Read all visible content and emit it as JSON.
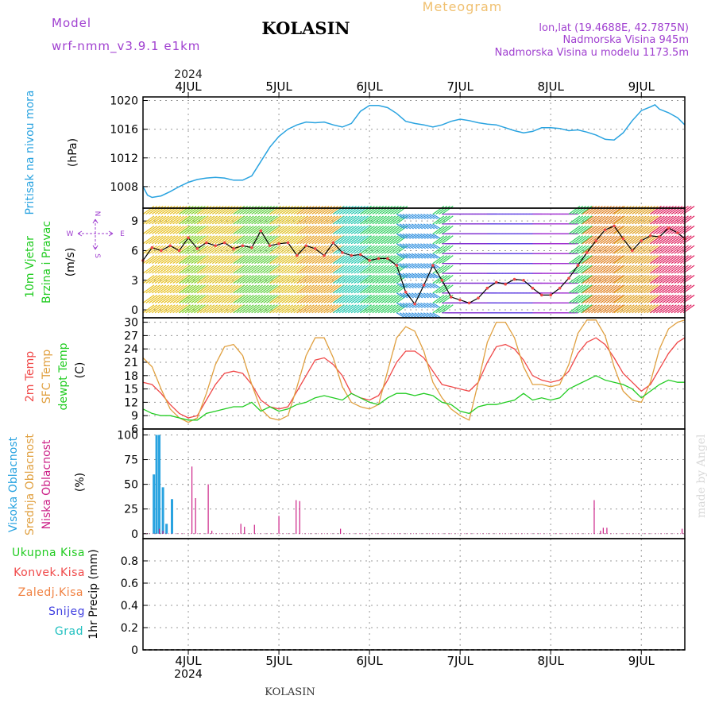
{
  "header": {
    "model_label": "Model",
    "model_name": "wrf-nmm_v3.9.1 e1km",
    "station": "KOLASIN",
    "meteogram": "Meteogram",
    "lonlat": "lon,lat (19.4688E, 42.7875N)",
    "elevation": "Nadmorska Visina 945m",
    "model_elevation": "Nadmorska Visina u modelu 1173.5m",
    "footer_station": "KOLASIN",
    "watermark": "made by Angel",
    "year_top": "2024",
    "year_bottom": "2024"
  },
  "colors": {
    "pressure": "#29a3e0",
    "temp2m": "#f04848",
    "sfc": "#e0a040",
    "dewpt": "#22cc22",
    "high_cloud": "#29a3e0",
    "mid_cloud": "#e0a040",
    "low_cloud": "#cc2288",
    "label_purple": "#a040d0",
    "meteogram": "#f0c070"
  },
  "chart_data": [
    {
      "type": "line",
      "title": "Pritisak na nivou mora",
      "ylabel": "(hPa)",
      "ylim": [
        1005,
        1020.5
      ],
      "yticks": [
        1008,
        1012,
        1016,
        1020
      ],
      "x_day_labels": [
        "4JUL",
        "5JUL",
        "6JUL",
        "7JUL",
        "8JUL",
        "9JUL"
      ],
      "grid": true,
      "series": [
        {
          "name": "Pritisak na nivou mora",
          "x": [
            3.5,
            3.55,
            3.6,
            3.7,
            3.8,
            3.9,
            4.0,
            4.1,
            4.2,
            4.3,
            4.4,
            4.5,
            4.6,
            4.7,
            4.8,
            4.9,
            5.0,
            5.1,
            5.2,
            5.3,
            5.4,
            5.5,
            5.6,
            5.7,
            5.8,
            5.9,
            6.0,
            6.1,
            6.2,
            6.3,
            6.4,
            6.5,
            6.6,
            6.7,
            6.8,
            6.9,
            7.0,
            7.1,
            7.2,
            7.3,
            7.4,
            7.5,
            7.6,
            7.7,
            7.8,
            7.9,
            8.0,
            8.1,
            8.2,
            8.3,
            8.4,
            8.5,
            8.6,
            8.7,
            8.8,
            8.9,
            9.0,
            9.1,
            9.15,
            9.2,
            9.3,
            9.4,
            9.48
          ],
          "values": [
            1008,
            1006.8,
            1006.5,
            1006.7,
            1007.3,
            1008,
            1008.6,
            1009,
            1009.2,
            1009.3,
            1009.2,
            1008.9,
            1008.9,
            1009.5,
            1011.5,
            1013.5,
            1015,
            1016,
            1016.6,
            1017,
            1016.9,
            1017,
            1016.6,
            1016.3,
            1016.8,
            1018.5,
            1019.3,
            1019.3,
            1019,
            1018.2,
            1017.1,
            1016.8,
            1016.6,
            1016.3,
            1016.6,
            1017.1,
            1017.4,
            1017.2,
            1016.9,
            1016.7,
            1016.6,
            1016.2,
            1015.8,
            1015.5,
            1015.7,
            1016.2,
            1016.2,
            1016.1,
            1015.8,
            1015.9,
            1015.6,
            1015.2,
            1014.6,
            1014.5,
            1015.5,
            1017.2,
            1018.6,
            1019.1,
            1019.4,
            1018.8,
            1018.3,
            1017.6,
            1016.6
          ]
        }
      ]
    },
    {
      "type": "line",
      "title": "10m Vjetar Brzina i Pravac",
      "ylabel": "(m/s)",
      "ylim": [
        -0.8,
        10.3
      ],
      "yticks": [
        0,
        3,
        6,
        9
      ],
      "compass": {
        "n": "N",
        "e": "E",
        "s": "S",
        "w": "W"
      },
      "grid": true,
      "series": [
        {
          "name": "speed",
          "x": [
            3.5,
            3.6,
            3.7,
            3.8,
            3.9,
            4.0,
            4.1,
            4.2,
            4.3,
            4.4,
            4.5,
            4.6,
            4.7,
            4.8,
            4.9,
            5.0,
            5.1,
            5.2,
            5.3,
            5.4,
            5.5,
            5.6,
            5.7,
            5.8,
            5.9,
            6.0,
            6.1,
            6.2,
            6.3,
            6.4,
            6.5,
            6.6,
            6.7,
            6.8,
            6.9,
            7.0,
            7.1,
            7.2,
            7.3,
            7.4,
            7.5,
            7.6,
            7.7,
            7.8,
            7.9,
            8.0,
            8.1,
            8.2,
            8.3,
            8.4,
            8.5,
            8.6,
            8.7,
            8.8,
            8.9,
            9.0,
            9.1,
            9.2,
            9.3,
            9.4,
            9.48
          ],
          "values": [
            5,
            6.3,
            6,
            6.5,
            6,
            7.3,
            6.2,
            6.8,
            6.5,
            6.8,
            6.2,
            6.5,
            6.3,
            8,
            6.5,
            6.7,
            6.8,
            5.5,
            6.5,
            6.2,
            5.5,
            6.8,
            5.8,
            5.5,
            5.6,
            5,
            5.2,
            5.2,
            4.5,
            1.8,
            0.6,
            2.5,
            4.5,
            3,
            1.3,
            1,
            0.7,
            1.2,
            2.2,
            2.8,
            2.6,
            3.1,
            3,
            2.2,
            1.5,
            1.5,
            2.2,
            3.2,
            4.5,
            5.8,
            7,
            8.1,
            8.5,
            7.2,
            6,
            7,
            7.5,
            7.4,
            8.3,
            7.8,
            7.2
          ]
        }
      ]
    },
    {
      "type": "line",
      "title": "2m Temp / SFC Temp / dewpt Temp",
      "ylabel": "(C)",
      "ylim": [
        6,
        31
      ],
      "yticks": [
        6,
        9,
        12,
        15,
        18,
        21,
        24,
        27,
        30
      ],
      "grid": true,
      "series": [
        {
          "name": "2m Temp",
          "x": [
            3.5,
            3.6,
            3.7,
            3.8,
            3.9,
            4.0,
            4.1,
            4.2,
            4.3,
            4.4,
            4.5,
            4.6,
            4.7,
            4.8,
            4.9,
            5.0,
            5.1,
            5.2,
            5.3,
            5.4,
            5.5,
            5.6,
            5.7,
            5.8,
            5.9,
            6.0,
            6.1,
            6.2,
            6.3,
            6.4,
            6.5,
            6.6,
            6.7,
            6.8,
            6.9,
            7.0,
            7.1,
            7.2,
            7.3,
            7.4,
            7.5,
            7.6,
            7.7,
            7.8,
            7.9,
            8.0,
            8.1,
            8.2,
            8.3,
            8.4,
            8.5,
            8.6,
            8.7,
            8.8,
            8.9,
            9.0,
            9.1,
            9.2,
            9.3,
            9.4,
            9.48
          ],
          "values": [
            16.5,
            16,
            14,
            11.5,
            9.5,
            8.5,
            9,
            12.5,
            16,
            18.5,
            19,
            18.5,
            16,
            12.5,
            11,
            10.5,
            11,
            14.5,
            18,
            21.5,
            22,
            20.5,
            18,
            14,
            13,
            12.5,
            13.5,
            17,
            21,
            23.5,
            23.5,
            22,
            19,
            16,
            15.5,
            15,
            14.5,
            16.5,
            21,
            24.5,
            25,
            24,
            21.5,
            18,
            17,
            16.5,
            17,
            19,
            23,
            25.5,
            26.5,
            25,
            22,
            18.5,
            16.5,
            14.5,
            16,
            19.5,
            23,
            25.5,
            26.5
          ]
        },
        {
          "name": "SFC Temp",
          "x": [
            3.5,
            3.6,
            3.7,
            3.8,
            3.9,
            4.0,
            4.1,
            4.2,
            4.3,
            4.4,
            4.5,
            4.6,
            4.7,
            4.8,
            4.9,
            5.0,
            5.1,
            5.2,
            5.3,
            5.4,
            5.5,
            5.6,
            5.7,
            5.8,
            5.9,
            6.0,
            6.1,
            6.2,
            6.3,
            6.4,
            6.5,
            6.6,
            6.7,
            6.8,
            6.9,
            7.0,
            7.1,
            7.2,
            7.3,
            7.4,
            7.5,
            7.6,
            7.7,
            7.8,
            7.9,
            8.0,
            8.1,
            8.2,
            8.3,
            8.4,
            8.5,
            8.6,
            8.7,
            8.8,
            8.9,
            9.0,
            9.1,
            9.2,
            9.3,
            9.4,
            9.48
          ],
          "values": [
            22,
            20,
            15,
            10.5,
            8.5,
            7.5,
            8.5,
            14,
            20.5,
            24.5,
            25,
            22.5,
            16,
            10.5,
            8.5,
            8,
            9,
            15.5,
            22.5,
            26.5,
            26.5,
            22,
            15.5,
            12,
            11,
            10.5,
            11.5,
            19,
            26.5,
            29,
            28,
            23.5,
            16.5,
            13,
            10.5,
            9,
            8,
            16.5,
            25.5,
            30,
            30,
            26.5,
            20,
            16,
            16,
            15.5,
            16,
            20.5,
            27.5,
            30.5,
            30.5,
            27,
            20,
            14.5,
            12.5,
            12,
            16.5,
            24,
            28.5,
            30,
            30.5
          ]
        },
        {
          "name": "dewpt Temp",
          "x": [
            3.5,
            3.6,
            3.7,
            3.8,
            3.9,
            4.0,
            4.1,
            4.2,
            4.3,
            4.4,
            4.5,
            4.6,
            4.7,
            4.8,
            4.9,
            5.0,
            5.1,
            5.2,
            5.3,
            5.4,
            5.5,
            5.6,
            5.7,
            5.8,
            5.9,
            6.0,
            6.1,
            6.2,
            6.3,
            6.4,
            6.5,
            6.6,
            6.7,
            6.8,
            6.9,
            7.0,
            7.1,
            7.2,
            7.3,
            7.4,
            7.5,
            7.6,
            7.7,
            7.8,
            7.9,
            8.0,
            8.1,
            8.2,
            8.3,
            8.4,
            8.5,
            8.6,
            8.7,
            8.8,
            8.9,
            9.0,
            9.1,
            9.2,
            9.3,
            9.4,
            9.48
          ],
          "values": [
            10.5,
            9.5,
            9,
            9,
            8.5,
            8,
            8,
            9.5,
            10,
            10.5,
            11,
            11,
            12,
            10,
            11,
            10,
            10.5,
            11.5,
            12,
            13,
            13.5,
            13,
            12.5,
            14,
            13,
            12,
            11.5,
            13,
            14,
            14,
            13.5,
            14,
            13.5,
            12,
            11.5,
            10,
            9.5,
            11,
            11.5,
            11.5,
            12,
            12.5,
            14,
            12.5,
            13,
            12.5,
            13,
            15,
            16,
            17,
            18,
            17,
            16.5,
            16,
            15,
            13,
            14.5,
            16,
            17,
            16.5,
            16.5
          ]
        }
      ]
    },
    {
      "type": "bar",
      "title": "Visoka Oblacnost / Srednja Oblacnost / Niska Oblacnost",
      "ylabel": "(%)",
      "ylim": [
        -5,
        106
      ],
      "yticks": [
        0,
        25,
        50,
        75,
        100
      ],
      "grid": true,
      "series": [
        {
          "name": "Visoka Oblacnost",
          "x": [
            3.62,
            3.65,
            3.68,
            3.72,
            3.76,
            3.82
          ],
          "values": [
            60,
            100,
            100,
            47,
            10,
            35
          ]
        },
        {
          "name": "Niska Oblacnost",
          "x": [
            3.68,
            3.72,
            4.04,
            4.08,
            4.22,
            4.26,
            4.58,
            4.62,
            4.73,
            5.0,
            5.19,
            5.23,
            5.68,
            8.48,
            8.55,
            8.58,
            8.62,
            9.45
          ],
          "values": [
            5,
            3,
            68,
            36,
            50,
            3,
            10,
            7,
            9,
            18,
            34,
            33,
            5,
            34,
            3,
            6,
            6,
            5
          ]
        }
      ]
    },
    {
      "type": "line",
      "title": "1hr Precip",
      "ylabel": "1hr Precip (mm)",
      "ylim": [
        0,
        1.0
      ],
      "yticks": [
        0,
        0.2,
        0.4,
        0.6,
        0.8
      ],
      "grid": true,
      "legend": [
        "Ukupna Kisa",
        "Konvek.Kisa",
        "Zaledj.Kisa",
        "Snijeg",
        "Grad"
      ],
      "legend_colors": [
        "#22cc22",
        "#f04848",
        "#f08040",
        "#4040e0",
        "#22c0c0"
      ],
      "series": [
        {
          "name": "Ukupna Kisa",
          "x": [
            3.5,
            9.48
          ],
          "values": [
            0,
            0
          ]
        }
      ]
    }
  ]
}
